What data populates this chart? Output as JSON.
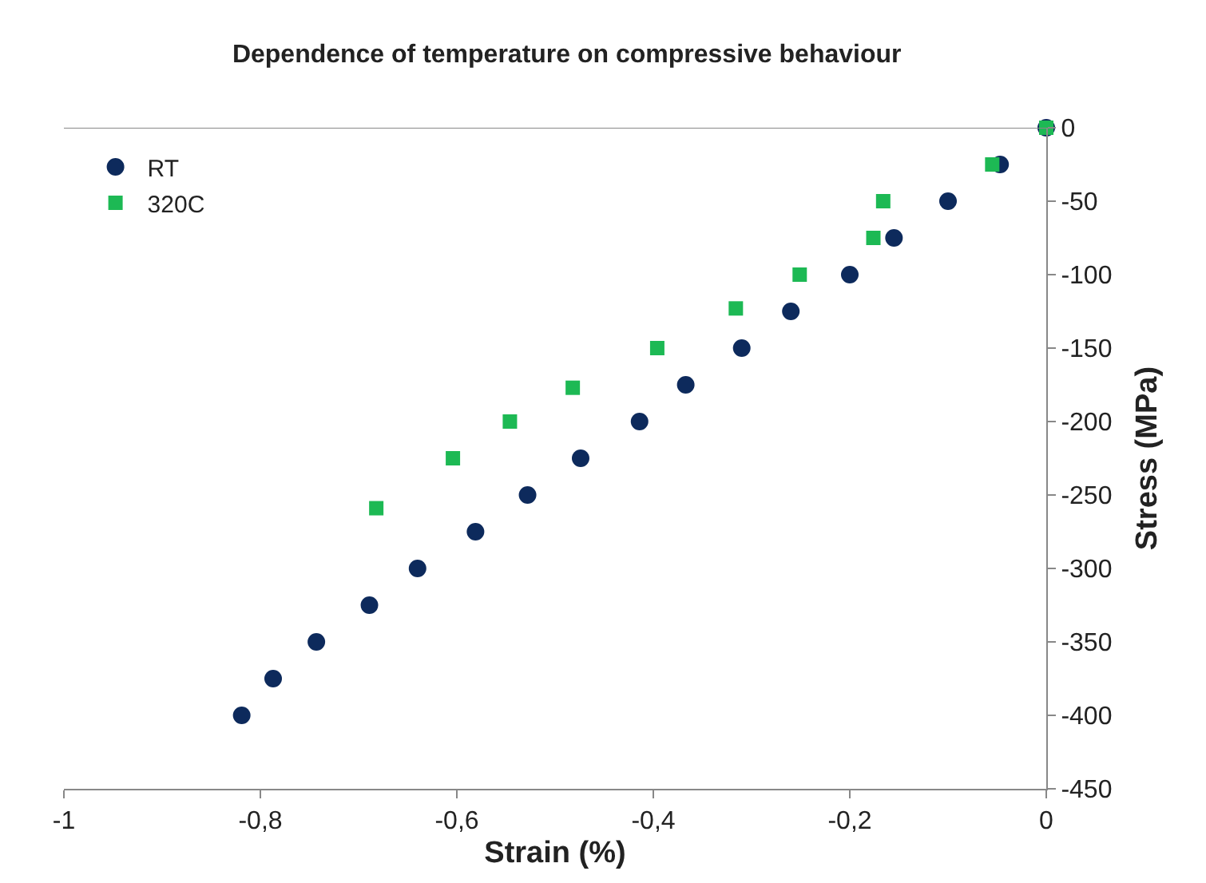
{
  "chart_data": {
    "type": "scatter",
    "title": "Dependence of temperature on compressive behaviour",
    "xlabel": "Strain (%)",
    "ylabel": "Stress (MPa)",
    "series": [
      {
        "name": "RT",
        "color": "#0d2a5c",
        "marker": "circle",
        "x": [
          0,
          -0.047,
          -0.1,
          -0.155,
          -0.2,
          -0.26,
          -0.31,
          -0.367,
          -0.414,
          -0.474,
          -0.528,
          -0.581,
          -0.64,
          -0.689,
          -0.743,
          -0.787,
          -0.819
        ],
        "values": [
          0,
          -25,
          -50,
          -75,
          -100,
          -125,
          -150,
          -175,
          -200,
          -225,
          -250,
          -275,
          -300,
          -325,
          -350,
          -375,
          -400
        ]
      },
      {
        "name": "320C",
        "color": "#1db954",
        "marker": "square",
        "x": [
          0,
          -0.055,
          -0.166,
          -0.176,
          -0.251,
          -0.316,
          -0.396,
          -0.482,
          -0.546,
          -0.604,
          -0.682
        ],
        "values": [
          0,
          -25,
          -50,
          -75,
          -100,
          -123,
          -150,
          -177,
          -200,
          -225,
          -259
        ]
      }
    ],
    "xlim": [
      -1,
      0
    ],
    "xticks": [
      {
        "value": -1,
        "label": "-1"
      },
      {
        "value": -0.8,
        "label": "-0,8"
      },
      {
        "value": -0.6,
        "label": "-0,6"
      },
      {
        "value": -0.4,
        "label": "-0,4"
      },
      {
        "value": -0.2,
        "label": "-0,2"
      },
      0
    ],
    "ylim": [
      -450,
      0
    ],
    "yticks": [
      -450,
      -400,
      -350,
      -300,
      -250,
      -200,
      -150,
      -100,
      -50,
      0
    ],
    "legend": "top left"
  }
}
